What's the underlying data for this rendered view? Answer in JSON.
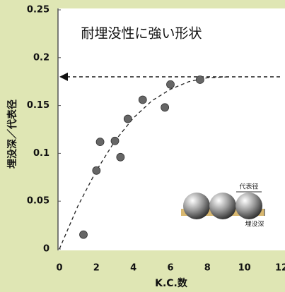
{
  "chart_data": {
    "type": "scatter",
    "title": "耐埋没性に強い形状",
    "x_label": "K.C.数",
    "y_label": "埋没深／代表径",
    "x": [
      1.3,
      2.0,
      2.2,
      3.0,
      3.3,
      3.7,
      4.5,
      5.7,
      6.0,
      7.6
    ],
    "values": [
      0.015,
      0.082,
      0.112,
      0.113,
      0.096,
      0.136,
      0.156,
      0.148,
      0.172,
      0.177
    ],
    "color": "#666666",
    "fit": {
      "x": [
        0,
        1,
        2,
        3,
        4,
        5,
        6,
        7,
        8,
        9.2
      ],
      "values": [
        0,
        0.045,
        0.082,
        0.113,
        0.137,
        0.155,
        0.167,
        0.175,
        0.179,
        0.18
      ]
    },
    "reference_line": 0.18,
    "xlim": [
      0,
      12
    ],
    "xticks": [
      0,
      2,
      4,
      6,
      8,
      10,
      12
    ],
    "ylim": [
      0,
      0.25
    ],
    "yticks": [
      0,
      0.05,
      0.1,
      0.15,
      0.2,
      0.25
    ],
    "inset_labels": [
      "代表径",
      "埋没深"
    ]
  }
}
